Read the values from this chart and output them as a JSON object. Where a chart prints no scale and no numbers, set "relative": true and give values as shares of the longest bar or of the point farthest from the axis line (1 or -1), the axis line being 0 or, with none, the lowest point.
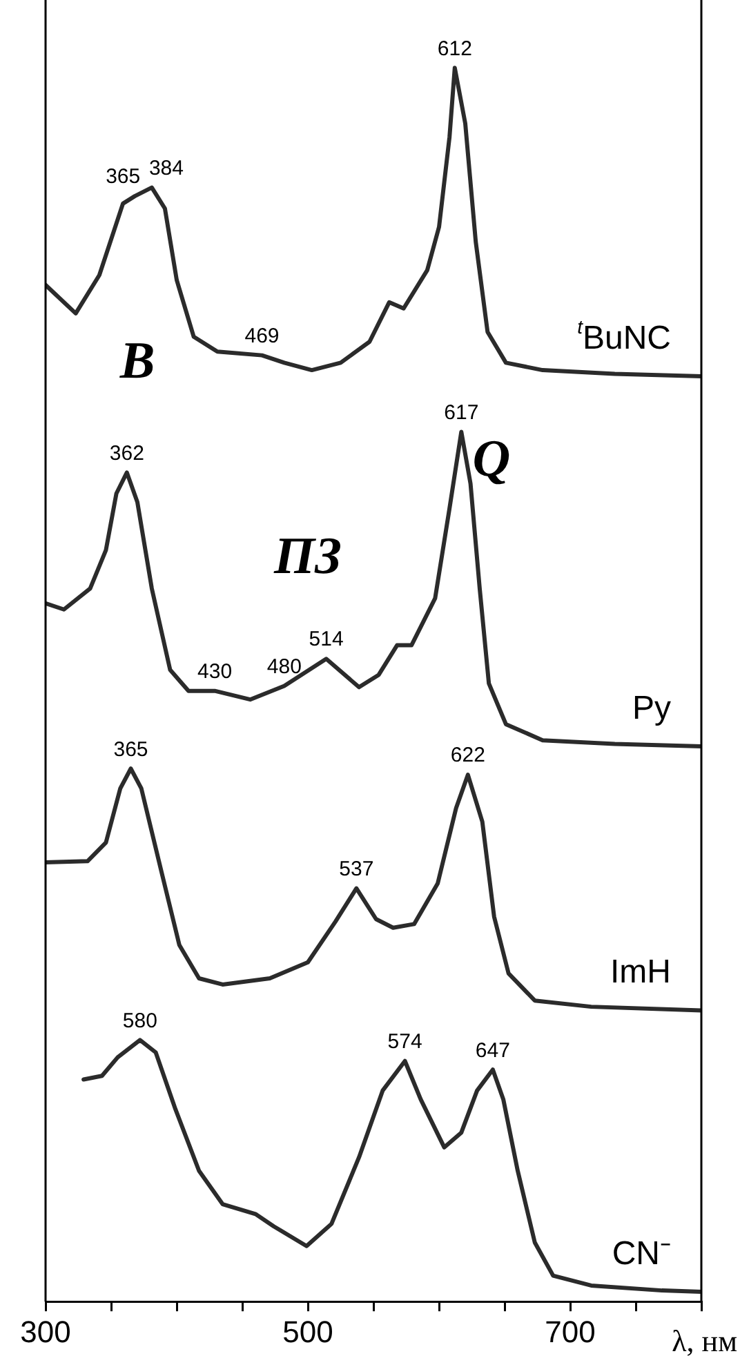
{
  "chart_data": {
    "type": "line",
    "relative": true,
    "xlabel": "λ, нм",
    "xlim": [
      300,
      800
    ],
    "xticks": [
      300,
      {
        "value": 350,
        "label": null
      },
      {
        "value": 400,
        "label": null
      },
      {
        "value": 450,
        "label": null
      },
      500,
      {
        "value": 550,
        "label": null
      },
      {
        "value": 600,
        "label": null
      },
      {
        "value": 650,
        "label": null
      },
      700,
      {
        "value": 750,
        "label": null
      },
      {
        "value": 800,
        "label": null
      }
    ],
    "grid": false,
    "legend": false,
    "marker": "none",
    "line_style": "solid",
    "series": [
      {
        "name": "$^{t}$BuNC",
        "color": "#2b2b2b",
        "x": [
          300,
          323,
          341,
          359,
          368,
          381,
          391,
          400,
          413,
          431,
          465,
          482,
          503,
          525,
          547,
          562,
          573,
          591,
          600,
          608,
          612,
          620,
          628,
          637,
          651,
          679,
          734,
          800
        ],
        "values": [
          0.824,
          0.801,
          0.832,
          0.89,
          0.896,
          0.903,
          0.886,
          0.828,
          0.782,
          0.77,
          0.767,
          0.761,
          0.755,
          0.761,
          0.778,
          0.81,
          0.805,
          0.836,
          0.871,
          0.944,
          1.0,
          0.955,
          0.859,
          0.786,
          0.761,
          0.755,
          0.752,
          0.75
        ]
      },
      {
        "name": "Py",
        "color": "#2b2b2b",
        "x": [
          300,
          314,
          334,
          346,
          354,
          362,
          370,
          381,
          395,
          409,
          429,
          456,
          482,
          514,
          539,
          554,
          568,
          579,
          597,
          608,
          617,
          624,
          631,
          638,
          651,
          679,
          734,
          800
        ],
        "values": [
          0.566,
          0.561,
          0.578,
          0.609,
          0.655,
          0.672,
          0.648,
          0.578,
          0.512,
          0.495,
          0.495,
          0.488,
          0.499,
          0.521,
          0.498,
          0.508,
          0.532,
          0.532,
          0.57,
          0.643,
          0.705,
          0.663,
          0.578,
          0.501,
          0.468,
          0.455,
          0.452,
          0.45
        ]
      },
      {
        "name": "ImH",
        "color": "#2b2b2b",
        "x": [
          300,
          332,
          346,
          357,
          365,
          373,
          388,
          402,
          417,
          435,
          471,
          500,
          521,
          537,
          552,
          565,
          581,
          599,
          613,
          622,
          633,
          642,
          653,
          673,
          716,
          800
        ],
        "values": [
          0.356,
          0.357,
          0.372,
          0.416,
          0.432,
          0.416,
          0.35,
          0.289,
          0.262,
          0.257,
          0.262,
          0.275,
          0.308,
          0.335,
          0.31,
          0.303,
          0.306,
          0.339,
          0.4,
          0.427,
          0.389,
          0.312,
          0.266,
          0.244,
          0.239,
          0.236
        ]
      },
      {
        "name": "CN⁻",
        "color": "#2b2b2b",
        "x": [
          329,
          343,
          355,
          372,
          384,
          399,
          417,
          435,
          460,
          474,
          499,
          518,
          539,
          557,
          574,
          586,
          604,
          617,
          629,
          641,
          649,
          660,
          673,
          687,
          716,
          770,
          800
        ],
        "values": [
          0.18,
          0.183,
          0.198,
          0.212,
          0.202,
          0.156,
          0.106,
          0.079,
          0.071,
          0.061,
          0.045,
          0.063,
          0.117,
          0.171,
          0.195,
          0.164,
          0.125,
          0.137,
          0.171,
          0.188,
          0.164,
          0.106,
          0.048,
          0.021,
          0.013,
          0.009,
          0.008
        ]
      }
    ],
    "annotations": [
      {
        "text": "612",
        "x": 612,
        "y": 1.0
      },
      {
        "text": "365",
        "x": 368,
        "y": 0.896
      },
      {
        "text": "384",
        "x": 381,
        "y": 0.903
      },
      {
        "text": "469",
        "x": 465,
        "y": 0.767
      },
      {
        "text": "362",
        "x": 362,
        "y": 0.672
      },
      {
        "text": "617",
        "x": 617,
        "y": 0.705
      },
      {
        "text": "430",
        "x": 429,
        "y": 0.495
      },
      {
        "text": "480",
        "x": 482,
        "y": 0.499
      },
      {
        "text": "514",
        "x": 514,
        "y": 0.521
      },
      {
        "text": "365",
        "x": 365,
        "y": 0.432
      },
      {
        "text": "622",
        "x": 622,
        "y": 0.427
      },
      {
        "text": "537",
        "x": 537,
        "y": 0.335
      },
      {
        "text": "580",
        "x": 372,
        "y": 0.212
      },
      {
        "text": "574",
        "x": 574,
        "y": 0.195
      },
      {
        "text": "647",
        "x": 641,
        "y": 0.188
      },
      "B",
      "Q",
      "ПЗ"
    ]
  }
}
